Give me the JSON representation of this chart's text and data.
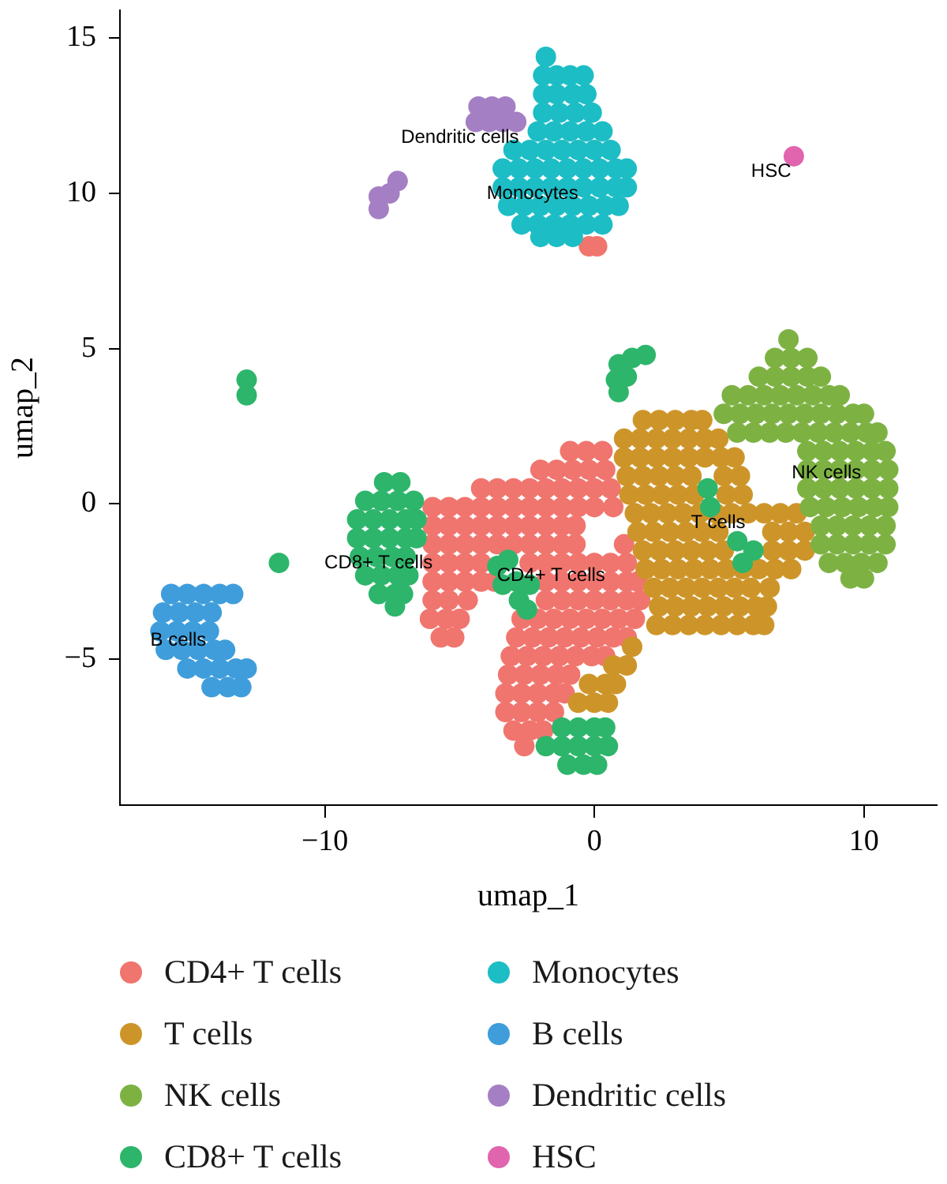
{
  "chart_data": {
    "type": "scatter",
    "xlabel": "umap_1",
    "ylabel": "umap_2",
    "xlim": [
      -17.6,
      12.7
    ],
    "ylim": [
      -9.7,
      15.9
    ],
    "xticks": [
      {
        "value": -10,
        "label": "−10"
      },
      0,
      10
    ],
    "yticks": [
      {
        "value": -5,
        "label": "−5"
      },
      0,
      5,
      10,
      15
    ],
    "grid": false,
    "legend": "bottom",
    "marker": "circle",
    "series": [
      {
        "name": "CD4+ T cells",
        "color": "#f0756e",
        "x": [
          -0.9,
          -0.3,
          0.3,
          -2.0,
          -1.4,
          -0.8,
          -0.2,
          0.4,
          -4.2,
          -3.6,
          -3.0,
          -2.4,
          -1.8,
          -1.2,
          -0.6,
          0.0,
          0.6,
          -6.0,
          -5.4,
          -4.8,
          -4.2,
          -3.6,
          -3.0,
          -2.4,
          -1.8,
          -1.2,
          -0.6,
          0.0,
          0.7,
          -6.0,
          -5.4,
          -4.8,
          -4.2,
          -3.6,
          -3.0,
          -2.4,
          -1.8,
          -1.2,
          -0.7,
          -6.0,
          -5.4,
          -4.8,
          -4.2,
          -3.6,
          -3.0,
          -2.4,
          -1.8,
          -1.2,
          -0.7,
          1.1,
          -6.0,
          -5.4,
          -4.8,
          -4.2,
          -2.4,
          -1.8,
          -1.2,
          -0.6,
          0.0,
          0.6,
          1.2,
          -6.0,
          -5.4,
          -4.8,
          -4.2,
          -3.7,
          -1.8,
          -1.2,
          -0.6,
          0.0,
          0.6,
          1.2,
          1.6,
          -6.0,
          -5.4,
          -4.7,
          -1.8,
          -1.2,
          -0.6,
          0.0,
          0.6,
          1.2,
          1.7,
          -6.1,
          -5.5,
          -5.0,
          -2.7,
          -2.1,
          -1.5,
          -0.9,
          -0.3,
          0.3,
          0.9,
          1.5,
          -5.7,
          -5.2,
          -2.9,
          -2.3,
          -1.7,
          -1.1,
          -0.5,
          0.1,
          0.7,
          1.2,
          -3.1,
          -2.5,
          -1.9,
          -1.3,
          -0.7,
          -0.1,
          0.4,
          -3.2,
          -2.6,
          -2.0,
          -1.4,
          -0.9,
          -3.3,
          -2.7,
          -2.1,
          -1.5,
          -1.1,
          -3.3,
          -2.7,
          -2.1,
          -1.5,
          -3.0,
          -2.4,
          -1.9,
          -2.6,
          -0.2,
          0.1
        ],
        "values": [
          1.7,
          1.7,
          1.7,
          1.1,
          1.1,
          1.1,
          1.1,
          1.1,
          0.5,
          0.5,
          0.5,
          0.5,
          0.5,
          0.5,
          0.5,
          0.5,
          0.5,
          -0.1,
          -0.1,
          -0.1,
          -0.1,
          -0.1,
          -0.1,
          -0.1,
          -0.1,
          -0.1,
          -0.1,
          -0.1,
          -0.1,
          -0.7,
          -0.7,
          -0.7,
          -0.7,
          -0.7,
          -0.7,
          -0.7,
          -0.7,
          -0.7,
          -0.7,
          -1.3,
          -1.3,
          -1.3,
          -1.3,
          -1.3,
          -1.3,
          -1.3,
          -1.3,
          -1.3,
          -1.3,
          -1.3,
          -1.9,
          -1.9,
          -1.9,
          -1.9,
          -1.9,
          -1.9,
          -1.9,
          -1.9,
          -1.9,
          -1.9,
          -1.9,
          -2.5,
          -2.5,
          -2.5,
          -2.5,
          -2.5,
          -2.5,
          -2.5,
          -2.5,
          -2.5,
          -2.5,
          -2.5,
          -2.5,
          -3.1,
          -3.1,
          -3.1,
          -3.1,
          -3.1,
          -3.1,
          -3.1,
          -3.1,
          -3.1,
          -3.1,
          -3.7,
          -3.7,
          -3.7,
          -3.7,
          -3.7,
          -3.7,
          -3.7,
          -3.7,
          -3.7,
          -3.7,
          -3.7,
          -4.3,
          -4.3,
          -4.3,
          -4.3,
          -4.3,
          -4.3,
          -4.3,
          -4.3,
          -4.3,
          -4.3,
          -4.9,
          -4.9,
          -4.9,
          -4.9,
          -4.9,
          -4.9,
          -4.9,
          -5.5,
          -5.5,
          -5.5,
          -5.5,
          -5.5,
          -6.1,
          -6.1,
          -6.1,
          -6.1,
          -6.1,
          -6.7,
          -6.7,
          -6.7,
          -6.7,
          -7.3,
          -7.3,
          -7.3,
          -7.8,
          8.3,
          8.3
        ]
      },
      {
        "name": "T cells",
        "color": "#cd9529",
        "x": [
          1.8,
          2.4,
          3.0,
          3.6,
          4.0,
          1.1,
          1.7,
          2.3,
          2.9,
          3.5,
          4.1,
          4.6,
          1.1,
          1.7,
          2.3,
          2.9,
          3.5,
          4.1,
          4.7,
          5.2,
          1.2,
          1.8,
          2.4,
          3.0,
          3.6,
          4.8,
          5.4,
          1.3,
          1.9,
          2.5,
          3.1,
          3.7,
          4.9,
          5.5,
          1.5,
          2.1,
          2.7,
          3.3,
          3.9,
          4.5,
          5.1,
          5.7,
          6.3,
          6.9,
          7.5,
          1.6,
          2.2,
          2.8,
          3.4,
          4.0,
          4.6,
          6.6,
          7.2,
          7.8,
          1.8,
          2.4,
          3.0,
          3.6,
          4.2,
          4.8,
          6.6,
          7.2,
          7.8,
          1.9,
          2.5,
          3.1,
          3.7,
          4.3,
          4.9,
          5.5,
          6.1,
          6.7,
          7.3,
          2.2,
          2.8,
          3.4,
          4.0,
          4.6,
          5.2,
          5.8,
          6.5,
          2.4,
          3.0,
          3.6,
          4.2,
          4.8,
          5.4,
          6.0,
          6.4,
          2.3,
          2.9,
          3.5,
          4.1,
          4.7,
          5.3,
          5.9,
          6.3,
          1.4,
          0.7,
          1.2,
          -0.2,
          0.4,
          0.8,
          -0.6,
          0.0,
          0.5
        ],
        "values": [
          2.7,
          2.7,
          2.7,
          2.7,
          2.7,
          2.1,
          2.1,
          2.1,
          2.1,
          2.1,
          2.1,
          2.1,
          1.5,
          1.5,
          1.5,
          1.5,
          1.5,
          1.5,
          1.5,
          1.5,
          0.9,
          0.9,
          0.9,
          0.9,
          0.9,
          0.9,
          0.9,
          0.3,
          0.3,
          0.3,
          0.3,
          0.3,
          0.3,
          0.3,
          -0.3,
          -0.3,
          -0.3,
          -0.3,
          -0.3,
          -0.3,
          -0.3,
          -0.3,
          -0.3,
          -0.3,
          -0.3,
          -0.9,
          -0.9,
          -0.9,
          -0.9,
          -0.9,
          -0.9,
          -0.9,
          -0.9,
          -0.9,
          -1.5,
          -1.5,
          -1.5,
          -1.5,
          -1.5,
          -1.5,
          -1.5,
          -1.5,
          -1.5,
          -2.1,
          -2.1,
          -2.1,
          -2.1,
          -2.1,
          -2.1,
          -2.1,
          -2.1,
          -2.1,
          -2.1,
          -2.7,
          -2.7,
          -2.7,
          -2.7,
          -2.7,
          -2.7,
          -2.7,
          -2.7,
          -3.3,
          -3.3,
          -3.3,
          -3.3,
          -3.3,
          -3.3,
          -3.3,
          -3.3,
          -3.9,
          -3.9,
          -3.9,
          -3.9,
          -3.9,
          -3.9,
          -3.9,
          -3.9,
          -4.6,
          -5.2,
          -5.2,
          -5.8,
          -5.8,
          -5.8,
          -6.4,
          -6.4,
          -6.4
        ]
      },
      {
        "name": "NK cells",
        "color": "#7db243",
        "x": [
          7.2,
          6.7,
          7.3,
          7.9,
          6.1,
          6.7,
          7.3,
          7.9,
          8.4,
          5.1,
          5.7,
          6.3,
          6.9,
          7.5,
          8.1,
          8.7,
          9.1,
          4.8,
          5.4,
          6.0,
          6.6,
          7.2,
          7.8,
          8.4,
          9.0,
          9.6,
          10.0,
          5.3,
          5.9,
          6.5,
          7.1,
          7.7,
          8.3,
          8.9,
          9.5,
          10.1,
          10.5,
          7.9,
          8.5,
          9.1,
          9.7,
          10.3,
          10.8,
          7.9,
          8.5,
          9.1,
          9.7,
          10.3,
          10.9,
          7.9,
          8.5,
          9.1,
          9.7,
          10.3,
          10.9,
          8.0,
          8.6,
          9.2,
          9.8,
          10.4,
          10.9,
          8.4,
          9.0,
          9.6,
          10.2,
          10.8,
          8.4,
          9.0,
          9.6,
          10.2,
          10.8,
          8.7,
          9.3,
          9.9,
          10.5,
          9.5,
          10.0
        ],
        "values": [
          5.3,
          4.7,
          4.7,
          4.7,
          4.1,
          4.1,
          4.1,
          4.1,
          4.1,
          3.5,
          3.5,
          3.5,
          3.5,
          3.5,
          3.5,
          3.5,
          3.5,
          2.9,
          2.9,
          2.9,
          2.9,
          2.9,
          2.9,
          2.9,
          2.9,
          2.9,
          2.9,
          2.3,
          2.3,
          2.3,
          2.3,
          2.3,
          2.3,
          2.3,
          2.3,
          2.3,
          2.3,
          1.7,
          1.7,
          1.7,
          1.7,
          1.7,
          1.7,
          1.1,
          1.1,
          1.1,
          1.1,
          1.1,
          1.1,
          0.5,
          0.5,
          0.5,
          0.5,
          0.5,
          0.5,
          -0.1,
          -0.1,
          -0.1,
          -0.1,
          -0.1,
          -0.1,
          -0.7,
          -0.7,
          -0.7,
          -0.7,
          -0.7,
          -1.3,
          -1.3,
          -1.3,
          -1.3,
          -1.3,
          -1.9,
          -1.9,
          -1.9,
          -1.9,
          -2.4,
          -2.4
        ]
      },
      {
        "name": "CD8+ T cells",
        "color": "#2db56b",
        "x": [
          -7.8,
          -7.2,
          -8.5,
          -7.9,
          -7.3,
          -6.7,
          -8.8,
          -8.2,
          -7.6,
          -7.0,
          -6.6,
          -8.8,
          -8.2,
          -7.6,
          -7.0,
          -6.6,
          -8.7,
          -8.1,
          -7.5,
          -7.0,
          -8.5,
          -7.9,
          -7.3,
          -6.9,
          -8.0,
          -7.4,
          -7.1,
          -7.4,
          -3.6,
          -3.2,
          -3.4,
          -2.9,
          -2.4,
          -2.8,
          -2.5,
          -1.2,
          -0.6,
          0.0,
          0.4,
          -1.8,
          -1.2,
          -0.6,
          0.0,
          0.5,
          -1.0,
          -0.4,
          0.1,
          4.2,
          4.3,
          5.3,
          5.9,
          5.5,
          0.9,
          1.4,
          1.9,
          0.8,
          1.2,
          0.9,
          -12.9,
          -12.9,
          -11.7
        ],
        "values": [
          0.7,
          0.7,
          0.1,
          0.1,
          0.1,
          0.1,
          -0.5,
          -0.5,
          -0.5,
          -0.5,
          -0.5,
          -1.1,
          -1.1,
          -1.1,
          -1.1,
          -1.1,
          -1.7,
          -1.7,
          -1.7,
          -1.7,
          -2.3,
          -2.3,
          -2.3,
          -2.3,
          -2.9,
          -2.9,
          -2.9,
          -3.3,
          -2.0,
          -1.8,
          -2.6,
          -2.5,
          -2.6,
          -3.1,
          -3.4,
          -7.2,
          -7.2,
          -7.2,
          -7.2,
          -7.8,
          -7.8,
          -7.8,
          -7.8,
          -7.8,
          -8.4,
          -8.4,
          -8.4,
          0.5,
          -0.1,
          -1.2,
          -1.5,
          -1.9,
          4.5,
          4.7,
          4.8,
          4.0,
          4.1,
          3.6,
          4.0,
          3.5,
          -1.9
        ]
      },
      {
        "name": "Monocytes",
        "color": "#1dbdc5",
        "x": [
          -1.8,
          -1.9,
          -1.4,
          -0.9,
          -0.4,
          -1.9,
          -1.4,
          -0.8,
          -0.3,
          -1.9,
          -1.3,
          -0.7,
          -0.1,
          -2.1,
          -1.5,
          -0.9,
          -0.3,
          0.3,
          -3.0,
          -2.4,
          -1.8,
          -1.2,
          -0.6,
          0.0,
          0.6,
          -3.4,
          -2.8,
          -2.2,
          -1.6,
          -1.0,
          -0.4,
          0.2,
          0.8,
          1.2,
          -3.4,
          -2.8,
          -2.2,
          -1.6,
          -1.0,
          -0.4,
          0.2,
          0.8,
          1.2,
          -3.2,
          -2.6,
          -2.0,
          -1.4,
          -0.8,
          -0.2,
          0.4,
          0.9,
          -2.7,
          -2.1,
          -1.5,
          -0.9,
          -0.3,
          0.3,
          -2.0,
          -1.4,
          -0.8
        ],
        "values": [
          14.4,
          13.8,
          13.8,
          13.8,
          13.8,
          13.2,
          13.2,
          13.2,
          13.2,
          12.6,
          12.6,
          12.6,
          12.6,
          12.0,
          12.0,
          12.0,
          12.0,
          12.0,
          11.4,
          11.4,
          11.4,
          11.4,
          11.4,
          11.4,
          11.4,
          10.8,
          10.8,
          10.8,
          10.8,
          10.8,
          10.8,
          10.8,
          10.8,
          10.8,
          10.2,
          10.2,
          10.2,
          10.2,
          10.2,
          10.2,
          10.2,
          10.2,
          10.2,
          9.6,
          9.6,
          9.6,
          9.6,
          9.6,
          9.6,
          9.6,
          9.6,
          9.0,
          9.0,
          9.0,
          9.0,
          9.0,
          9.0,
          8.6,
          8.6,
          8.6
        ]
      },
      {
        "name": "B cells",
        "color": "#3f9ddb",
        "x": [
          -15.7,
          -15.1,
          -14.5,
          -13.9,
          -13.4,
          -16.0,
          -15.4,
          -14.8,
          -14.2,
          -16.1,
          -15.5,
          -14.9,
          -14.3,
          -15.9,
          -15.3,
          -14.7,
          -14.1,
          -13.7,
          -15.1,
          -14.5,
          -13.9,
          -13.3,
          -12.9,
          -14.2,
          -13.6,
          -13.1
        ],
        "values": [
          -2.9,
          -2.9,
          -2.9,
          -2.9,
          -2.9,
          -3.5,
          -3.5,
          -3.5,
          -3.5,
          -4.1,
          -4.1,
          -4.1,
          -4.1,
          -4.7,
          -4.7,
          -4.7,
          -4.7,
          -4.7,
          -5.3,
          -5.3,
          -5.3,
          -5.3,
          -5.3,
          -5.9,
          -5.9,
          -5.9
        ]
      },
      {
        "name": "Dendritic cells",
        "color": "#a57fc3",
        "x": [
          -4.3,
          -3.8,
          -3.3,
          -4.4,
          -3.9,
          -3.4,
          -2.9,
          -8.0,
          -8.0,
          -7.6,
          -7.3
        ],
        "values": [
          12.8,
          12.8,
          12.8,
          12.3,
          12.3,
          12.3,
          12.3,
          9.9,
          9.5,
          10.0,
          10.4
        ]
      },
      {
        "name": "HSC",
        "color": "#e065ae",
        "x": [
          7.4
        ],
        "values": [
          11.2
        ]
      }
    ],
    "annotations": [
      {
        "text": "Dendritic cells",
        "x": -2.8,
        "y": 12.1
      },
      {
        "text": "Monocytes",
        "x": -0.6,
        "y": 10.3
      },
      {
        "text": "HSC",
        "x": 7.3,
        "y": 11.0
      },
      {
        "text": "CD8+ T cells",
        "x": -6.0,
        "y": -1.6
      },
      {
        "text": "CD4+ T cells",
        "x": 0.4,
        "y": -2.0
      },
      {
        "text": "T cells",
        "x": 5.6,
        "y": -0.3
      },
      {
        "text": "NK cells",
        "x": 9.9,
        "y": 1.3
      },
      {
        "text": "B cells",
        "x": -14.4,
        "y": -4.1
      }
    ]
  }
}
